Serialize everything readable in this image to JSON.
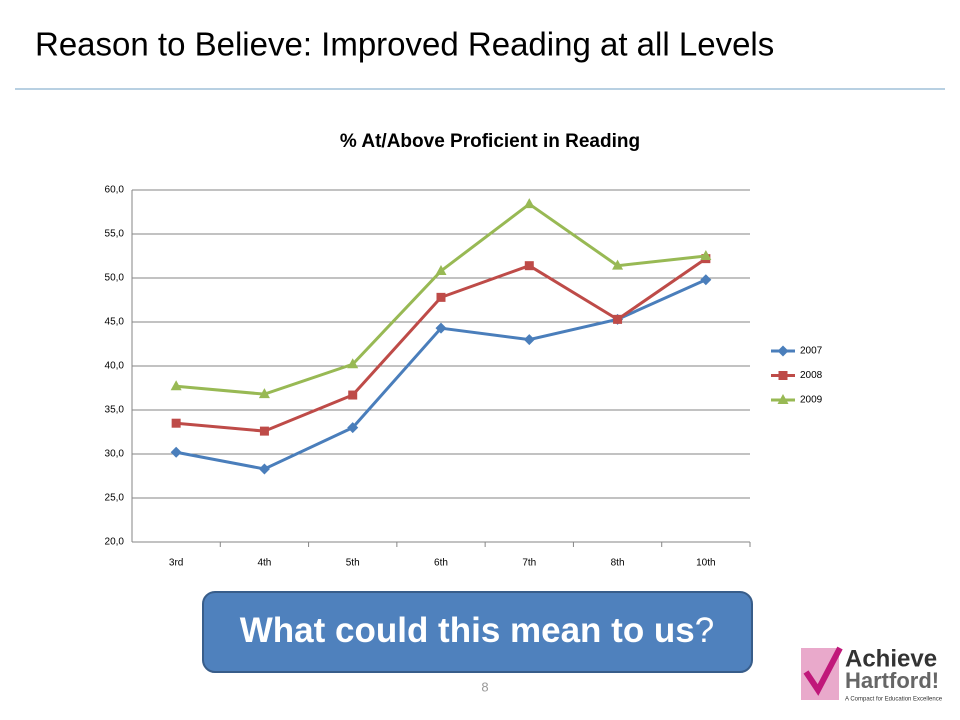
{
  "slide_title": "Reason to Believe:  Improved Reading at all Levels",
  "chart_data": {
    "type": "line",
    "title": "% At/Above Proficient in Reading",
    "categories": [
      "3rd",
      "4th",
      "5th",
      "6th",
      "7th",
      "8th",
      "10th"
    ],
    "series": [
      {
        "name": "2007",
        "color": "#4a7ebb",
        "marker": "diamond",
        "values": [
          30.2,
          28.3,
          33.0,
          44.3,
          43.0,
          45.3,
          49.8
        ]
      },
      {
        "name": "2008",
        "color": "#be4b48",
        "marker": "square",
        "values": [
          33.5,
          32.6,
          36.7,
          47.8,
          51.4,
          45.3,
          52.2
        ]
      },
      {
        "name": "2009",
        "color": "#98b954",
        "marker": "triangle",
        "values": [
          37.7,
          36.8,
          40.2,
          50.8,
          58.4,
          51.4,
          52.5
        ]
      }
    ],
    "ylim": [
      20,
      60
    ],
    "yticks": [
      {
        "value": 20,
        "label": "20,0"
      },
      {
        "value": 25,
        "label": "25,0"
      },
      {
        "value": 30,
        "label": "30,0"
      },
      {
        "value": 35,
        "label": "35,0"
      },
      {
        "value": 40,
        "label": "40,0"
      },
      {
        "value": 45,
        "label": "45,0"
      },
      {
        "value": 50,
        "label": "50,0"
      },
      {
        "value": 55,
        "label": "55,0"
      },
      {
        "value": 60,
        "label": "60,0"
      }
    ],
    "grid": true,
    "legend": "right"
  },
  "callout": {
    "bold": "What could this mean to us",
    "rest": "?"
  },
  "page_number": "8",
  "logo": {
    "line1": "Achieve",
    "line2": "Hartford!",
    "tagline": "A Compact for Education Excellence"
  }
}
